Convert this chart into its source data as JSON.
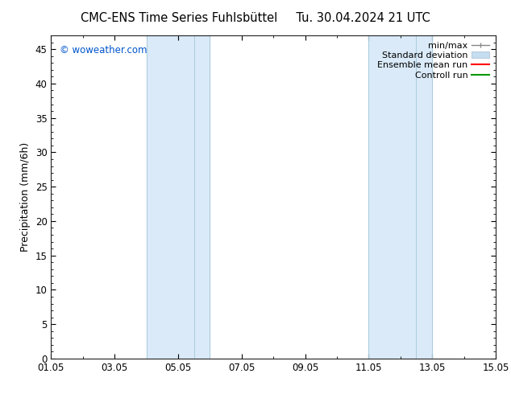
{
  "title_left": "CMC-ENS Time Series Fuhlsbüttel",
  "title_right": "Tu. 30.04.2024 21 UTC",
  "ylabel": "Precipitation (mm/6h)",
  "ylim": [
    0,
    47
  ],
  "yticks": [
    0,
    5,
    10,
    15,
    20,
    25,
    30,
    35,
    40,
    45
  ],
  "xlim": [
    0,
    14
  ],
  "xtick_labels": [
    "01.05",
    "03.05",
    "05.05",
    "07.05",
    "09.05",
    "11.05",
    "13.05",
    "15.05"
  ],
  "xtick_positions": [
    0,
    2,
    4,
    6,
    8,
    10,
    12,
    14
  ],
  "watermark": "© woweather.com",
  "watermark_color": "#0055cc",
  "background_color": "#ffffff",
  "plot_bg_color": "#ffffff",
  "shaded_bands": [
    {
      "xmin": 3.0,
      "xmax": 4.0,
      "inner": 3.5
    },
    {
      "xmin": 10.0,
      "xmax": 12.0,
      "inner": 11.5
    }
  ],
  "band_color": "#daeaf8",
  "band_line_color": "#aaccdd",
  "title_fontsize": 10.5,
  "tick_fontsize": 8.5,
  "label_fontsize": 9,
  "watermark_fontsize": 8.5,
  "legend_fontsize": 8,
  "legend_items": [
    {
      "label": "min/max",
      "color": "#999999"
    },
    {
      "label": "Standard deviation",
      "color": "#c5ddf0"
    },
    {
      "label": "Ensemble mean run",
      "color": "#ff0000"
    },
    {
      "label": "Controll run",
      "color": "#009900"
    }
  ]
}
